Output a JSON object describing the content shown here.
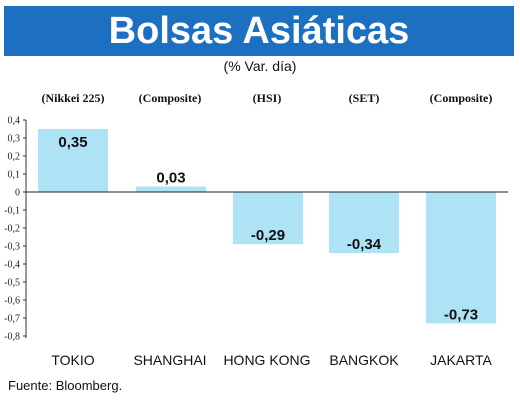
{
  "header": {
    "title": "Bolsas Asiáticas",
    "subtitle": "(% Var. día)"
  },
  "source": "Fuente: Bloomberg.",
  "colors": {
    "title_bg": "#1d6fc2",
    "bar": "#aee3f5"
  },
  "chart_data": {
    "type": "bar",
    "title": "Bolsas Asiáticas",
    "subtitle": "(% Var. día)",
    "categories": [
      "TOKIO",
      "SHANGHAI",
      "HONG KONG",
      "BANGKOK",
      "JAKARTA"
    ],
    "index_labels": [
      "(Nikkei 225)",
      "(Composite)",
      "(HSI)",
      "(SET)",
      "(Composite)"
    ],
    "values": [
      0.35,
      0.03,
      -0.29,
      -0.34,
      -0.73
    ],
    "value_labels": [
      "0,35",
      "0,03",
      "-0,29",
      "-0,34",
      "-0,73"
    ],
    "yticks": [
      0.4,
      0.3,
      0.2,
      0.1,
      0,
      -0.1,
      -0.2,
      -0.3,
      -0.4,
      -0.5,
      -0.6,
      -0.7,
      -0.8
    ],
    "ytick_labels": [
      "0,4",
      "0,3",
      "0,2",
      "0,1",
      "0",
      "-0,1",
      "-0,2",
      "-0,3",
      "-0,4",
      "-0,5",
      "-0,6",
      "-0,7",
      "-0,8"
    ],
    "ylim": [
      -0.8,
      0.4
    ],
    "grid": false,
    "legend": "none"
  }
}
